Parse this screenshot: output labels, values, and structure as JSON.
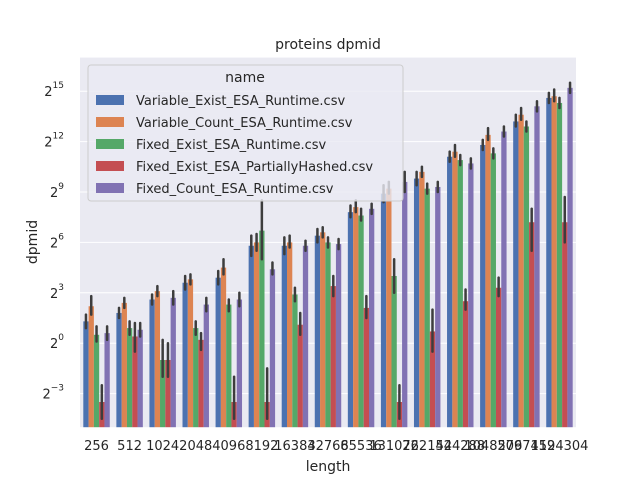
{
  "chart_data": {
    "type": "bar",
    "title": "proteins dpmid",
    "xlabel": "length",
    "ylabel": "dpmid",
    "y_scale": "log2",
    "ylim_exponent": [
      -5,
      17
    ],
    "yticks": [
      {
        "base": "2",
        "exp": "15",
        "value": 15
      },
      {
        "base": "2",
        "exp": "12",
        "value": 12
      },
      {
        "base": "2",
        "exp": "9",
        "value": 9
      },
      {
        "base": "2",
        "exp": "6",
        "value": 6
      },
      {
        "base": "2",
        "exp": "3",
        "value": 3
      },
      {
        "base": "2",
        "exp": "0",
        "value": 0
      },
      {
        "base": "2",
        "exp": "−3",
        "value": -3
      }
    ],
    "categories": [
      "256",
      "512",
      "1024",
      "2048",
      "4096",
      "8192",
      "16384",
      "32768",
      "65536",
      "131072",
      "262144",
      "524288",
      "1048576",
      "2097152",
      "4194304"
    ],
    "legend": {
      "title": "name",
      "placement": "upper-left"
    },
    "grid": true,
    "error_bars": true,
    "series": [
      {
        "name": "Variable_Exist_ESA_Runtime.csv",
        "color": "#4c72b0",
        "values": [
          1.3,
          1.8,
          2.6,
          3.6,
          3.9,
          5.8,
          5.8,
          6.4,
          7.8,
          8.9,
          9.8,
          11.1,
          11.8,
          13.2,
          14.6
        ],
        "err": [
          [
            0.9,
            1.7
          ],
          [
            1.5,
            2.1
          ],
          [
            2.3,
            2.9
          ],
          [
            3.2,
            4.0
          ],
          [
            3.5,
            4.3
          ],
          [
            5.2,
            6.4
          ],
          [
            5.3,
            6.3
          ],
          [
            6.0,
            6.8
          ],
          [
            7.5,
            8.2
          ],
          [
            8.4,
            9.4
          ],
          [
            9.4,
            10.2
          ],
          [
            10.8,
            11.4
          ],
          [
            11.5,
            12.1
          ],
          [
            12.9,
            13.6
          ],
          [
            14.3,
            14.9
          ]
        ]
      },
      {
        "name": "Variable_Count_ESA_Runtime.csv",
        "color": "#dd8452",
        "values": [
          2.2,
          2.4,
          3.1,
          3.8,
          4.5,
          6.0,
          6.0,
          6.6,
          8.1,
          9.2,
          10.2,
          11.4,
          12.4,
          13.6,
          14.7
        ],
        "err": [
          [
            1.7,
            2.8
          ],
          [
            2.1,
            2.7
          ],
          [
            2.8,
            3.4
          ],
          [
            3.5,
            4.1
          ],
          [
            4.1,
            5.0
          ],
          [
            5.5,
            6.5
          ],
          [
            5.7,
            6.4
          ],
          [
            6.3,
            6.9
          ],
          [
            7.8,
            8.5
          ],
          [
            8.9,
            9.6
          ],
          [
            9.9,
            10.5
          ],
          [
            11.1,
            11.8
          ],
          [
            12.1,
            12.8
          ],
          [
            13.3,
            14.0
          ],
          [
            14.4,
            15.1
          ]
        ]
      },
      {
        "name": "Fixed_Exist_ESA_Runtime.csv",
        "color": "#55a868",
        "values": [
          0.5,
          0.9,
          -1.0,
          0.9,
          2.3,
          6.7,
          2.9,
          6.0,
          7.6,
          4.0,
          9.2,
          10.9,
          11.3,
          12.9,
          14.3
        ],
        "err": [
          [
            0.1,
            1.0
          ],
          [
            0.5,
            1.3
          ],
          [
            -2.0,
            0.2
          ],
          [
            0.5,
            1.3
          ],
          [
            1.9,
            2.6
          ],
          [
            5.0,
            8.5
          ],
          [
            2.5,
            3.3
          ],
          [
            5.7,
            6.3
          ],
          [
            7.3,
            8.0
          ],
          [
            3.0,
            5.0
          ],
          [
            8.9,
            9.5
          ],
          [
            10.6,
            11.2
          ],
          [
            11.0,
            11.6
          ],
          [
            12.6,
            13.2
          ],
          [
            14.0,
            14.6
          ]
        ]
      },
      {
        "name": "Fixed_Exist_ESA_PartiallyHashed.csv",
        "color": "#c44e52",
        "values": [
          -3.5,
          0.4,
          -1.0,
          0.2,
          -3.5,
          -3.5,
          1.1,
          3.4,
          2.1,
          -3.5,
          0.7,
          2.5,
          3.3,
          7.2,
          7.2
        ],
        "err": [
          [
            -4.5,
            -2.5
          ],
          [
            -0.5,
            1.2
          ],
          [
            -2.0,
            0.0
          ],
          [
            -0.4,
            0.6
          ],
          [
            -4.5,
            -2.0
          ],
          [
            -4.5,
            -1.5
          ],
          [
            0.5,
            1.8
          ],
          [
            2.8,
            4.0
          ],
          [
            1.5,
            2.8
          ],
          [
            -4.5,
            -2.5
          ],
          [
            -0.5,
            2.0
          ],
          [
            2.0,
            3.2
          ],
          [
            2.8,
            3.9
          ],
          [
            5.5,
            8.0
          ],
          [
            6.0,
            8.7
          ]
        ]
      },
      {
        "name": "Fixed_Count_ESA_Runtime.csv",
        "color": "#8172b3",
        "values": [
          0.6,
          0.8,
          2.7,
          2.3,
          2.6,
          4.4,
          5.8,
          5.9,
          8.0,
          9.6,
          9.3,
          10.7,
          12.6,
          14.1,
          15.2
        ],
        "err": [
          [
            0.2,
            1.0
          ],
          [
            0.4,
            1.2
          ],
          [
            2.3,
            3.1
          ],
          [
            1.9,
            2.7
          ],
          [
            2.2,
            3.0
          ],
          [
            4.1,
            4.8
          ],
          [
            5.5,
            6.1
          ],
          [
            5.6,
            6.2
          ],
          [
            7.7,
            8.3
          ],
          [
            9.0,
            10.2
          ],
          [
            9.0,
            9.6
          ],
          [
            10.4,
            11.0
          ],
          [
            12.3,
            12.9
          ],
          [
            13.8,
            14.4
          ],
          [
            14.9,
            15.5
          ]
        ]
      }
    ]
  }
}
